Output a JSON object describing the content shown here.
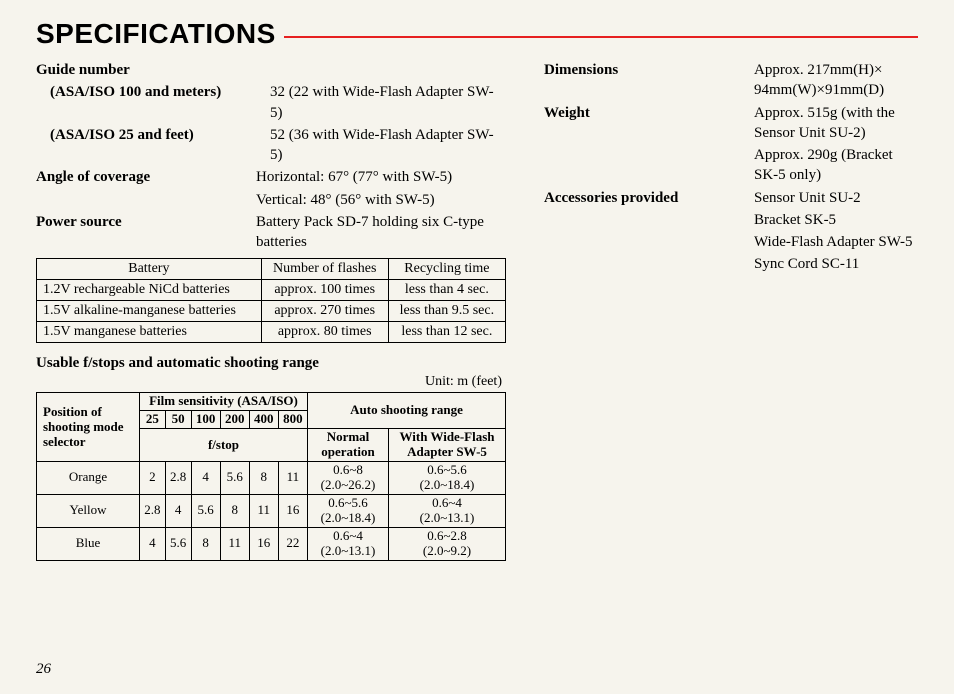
{
  "title": "SPECIFICATIONS",
  "rule_color": "#e62020",
  "page_number": "26",
  "left": {
    "guide_number_label": "Guide number",
    "asa100_label": "(ASA/ISO 100 and meters)",
    "asa100_val": "32 (22 with Wide-Flash Adapter SW-5)",
    "asa25_label": "(ASA/ISO 25 and feet)",
    "asa25_val": "52 (36 with Wide-Flash Adapter SW-5)",
    "angle_label": "Angle of coverage",
    "angle_val1": "Horizontal: 67° (77° with SW-5)",
    "angle_val2": "Vertical: 48° (56° with SW-5)",
    "power_label": "Power source",
    "power_val": "Battery Pack SD-7 holding six C-type batteries"
  },
  "battery_table": {
    "headers": [
      "Battery",
      "Number of flashes",
      "Recycling time"
    ],
    "rows": [
      [
        "1.2V rechargeable NiCd batteries",
        "approx. 100 times",
        "less than 4 sec."
      ],
      [
        "1.5V alkaline-manganese batteries",
        "approx. 270 times",
        "less than 9.5 sec."
      ],
      [
        "1.5V manganese batteries",
        "approx. 80 times",
        "less than 12 sec."
      ]
    ]
  },
  "fstop_heading": "Usable f/stops and automatic shooting range",
  "fstop_unit": "Unit: m (feet)",
  "fstop_table": {
    "position_label": "Position of shooting mode selector",
    "film_label": "Film sensitivity (ASA/ISO)",
    "fstop_label": "f/stop",
    "auto_label": "Auto shooting range",
    "normal_label": "Normal operation",
    "wide_label": "With Wide-Flash Adapter SW-5",
    "iso": [
      "25",
      "50",
      "100",
      "200",
      "400",
      "800"
    ],
    "rows": [
      {
        "mode": "Orange",
        "stops": [
          "2",
          "2.8",
          "4",
          "5.6",
          "8",
          "11"
        ],
        "normal": "0.6~8\n(2.0~26.2)",
        "wide": "0.6~5.6\n(2.0~18.4)"
      },
      {
        "mode": "Yellow",
        "stops": [
          "2.8",
          "4",
          "5.6",
          "8",
          "11",
          "16"
        ],
        "normal": "0.6~5.6\n(2.0~18.4)",
        "wide": "0.6~4\n(2.0~13.1)"
      },
      {
        "mode": "Blue",
        "stops": [
          "4",
          "5.6",
          "8",
          "11",
          "16",
          "22"
        ],
        "normal": "0.6~4\n(2.0~13.1)",
        "wide": "0.6~2.8\n(2.0~9.2)"
      }
    ]
  },
  "right": {
    "dim_label": "Dimensions",
    "dim_val": "Approx. 217mm(H)× 94mm(W)×91mm(D)",
    "weight_label": "Weight",
    "weight_val1": "Approx. 515g (with the Sensor Unit SU-2)",
    "weight_val2": "Approx. 290g (Bracket SK-5 only)",
    "acc_label": "Accessories provided",
    "acc_val1": "Sensor Unit SU-2",
    "acc_val2": "Bracket SK-5",
    "acc_val3": "Wide-Flash Adapter SW-5",
    "acc_val4": "Sync Cord SC-11"
  }
}
